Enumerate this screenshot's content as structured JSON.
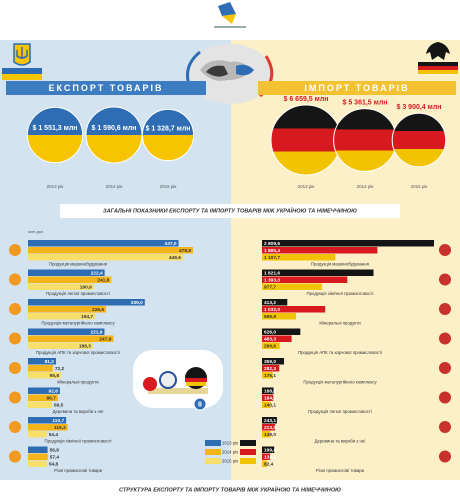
{
  "header": {
    "overview_title": "ЗАГАЛЬНІ ПОКАЗНИКИ ЕКСПОРТУ ТА ІМПОРТУ ТОВАРІВ МІЖ УКРАЇНОЮ ТА НІМЕЧЧИНОЮ",
    "structure_title": "СТРУКТУРА ЕКСПОРТУ ТА ІМПОРТУ ТОВАРІВ МІЖ УКРАЇНОЮ ТА НІМЕЧЧИНОЮ",
    "badge": "8"
  },
  "chart_data": [
    {
      "type": "bubble",
      "title": "ЕКСПОРТ ТОВАРІВ",
      "colors": [
        "#2e6db4",
        "#f6c400"
      ],
      "categories": [
        "2013 рік",
        "2014 рік",
        "2015 рік"
      ],
      "values": [
        1551.3,
        1590.6,
        1328.7
      ],
      "value_labels": [
        "$ 1 551,3 млн",
        "$ 1 590,6 млн",
        "$ 1 328,7 млн"
      ]
    },
    {
      "type": "bubble",
      "title": "ІМПОРТ ТОВАРІВ",
      "colors": [
        "#151515",
        "#d71920",
        "#f2c300"
      ],
      "categories": [
        "2013 рік",
        "2014 рік",
        "2015 рік"
      ],
      "values": [
        6659.5,
        5361.5,
        3900.4
      ],
      "value_labels": [
        "$ 6 659,5 млн",
        "$ 5 361,5 млн",
        "$ 3 900,4 млн"
      ]
    },
    {
      "type": "bar",
      "orientation": "horizontal",
      "unit": "млн дол.",
      "categories": [
        "Продукція машинобудування",
        "Продукція легкої промисловості",
        "Продукція металургійного комплексу",
        "Продукція АПК та харчової промисловості",
        "Мінеральні продукти",
        "Деревина та вироби з неї",
        "Продукція хімічної промисловості",
        "Різні промислові товари"
      ],
      "series": [
        {
          "name": "2013 рік",
          "color": "#2e6db4",
          "values": [
            437.0,
            222.4,
            339.0,
            221.9,
            81.2,
            92.6,
            110.7,
            56.8
          ],
          "value_labels": [
            "437,0",
            "222,4",
            "339,0",
            "221,9",
            "81,2",
            "92,6",
            "110,7",
            "56,8"
          ]
        },
        {
          "name": "2014 рік",
          "color": "#f4b41a",
          "values": [
            478.9,
            241.8,
            226.6,
            247.9,
            72.2,
            86.7,
            115.3,
            57.4
          ],
          "value_labels": [
            "478,9",
            "241,8",
            "226,6",
            "247,9",
            "72,2",
            "86,7",
            "115,3",
            "57,4"
          ]
        },
        {
          "name": "2015 рік",
          "color": "#f7df6b",
          "values": [
            449.6,
            190.9,
            194.7,
            188.3,
            95.8,
            69.5,
            54.4,
            54.8
          ],
          "value_labels": [
            "449,6",
            "190,9",
            "194,7",
            "188,3",
            "95,8",
            "69,5",
            "54,4",
            "54,8"
          ]
        }
      ]
    },
    {
      "type": "bar",
      "orientation": "horizontal",
      "categories": [
        "Продукція машинобудування",
        "Продукція хімічної промисловості",
        "Мінеральні продукти",
        "Продукція АПК та харчової промисловості",
        "Продукція металургійного комплексу",
        "Продукція легкої промисловості",
        "Деревина та вироби з неї",
        "Різні промислові товари"
      ],
      "series": [
        {
          "name": "2013 рік",
          "color": "#151515",
          "values": [
            2809.6,
            1821.6,
            413.2,
            626.0,
            359.0,
            188.6,
            243.1,
            199.4
          ],
          "value_labels": [
            "2 809,6",
            "1 821,6",
            "413,2",
            "626,0",
            "359,0",
            "188,6",
            "243,1",
            "199,4"
          ]
        },
        {
          "name": "2014 рік",
          "color": "#d71920",
          "values": [
            1885.4,
            1393.3,
            1032.0,
            483.3,
            282.3,
            184.3,
            213.9,
            132.6
          ],
          "value_labels": [
            "1 885,4",
            "1 393,3",
            "1 032,0",
            "483,3",
            "282,3",
            "184,3",
            "213,9",
            "132,6"
          ]
        },
        {
          "name": "2015 рік",
          "color": "#f2c300",
          "values": [
            1197.7,
            977.7,
            555.9,
            290.6,
            176.1,
            140.1,
            139.0,
            82.4
          ],
          "value_labels": [
            "1 197,7",
            "977,7",
            "555,9",
            "290,6",
            "176,1",
            "140,1",
            "139,0",
            "82,4"
          ]
        }
      ]
    }
  ]
}
